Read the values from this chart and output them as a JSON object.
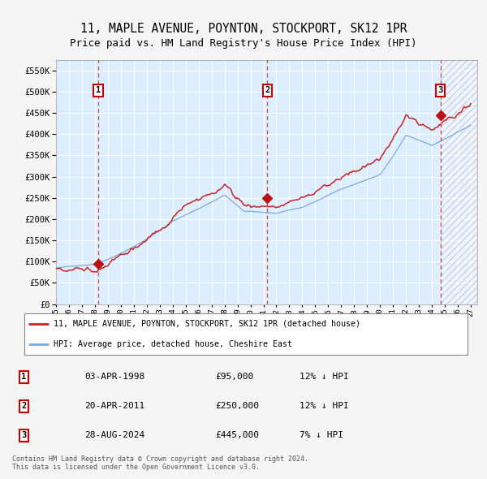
{
  "title": "11, MAPLE AVENUE, POYNTON, STOCKPORT, SK12 1PR",
  "subtitle": "Price paid vs. HM Land Registry's House Price Index (HPI)",
  "hpi_label": "HPI: Average price, detached house, Cheshire East",
  "property_label": "11, MAPLE AVENUE, POYNTON, STOCKPORT, SK12 1PR (detached house)",
  "sale_dates": [
    "03-APR-1998",
    "20-APR-2011",
    "28-AUG-2024"
  ],
  "sale_prices": [
    95000,
    250000,
    445000
  ],
  "sale_years": [
    1998.25,
    2011.3,
    2024.66
  ],
  "sale_hpi_pct": [
    "12%",
    "12%",
    "7%"
  ],
  "footer": [
    "Contains HM Land Registry data © Crown copyright and database right 2024.",
    "This data is licensed under the Open Government Licence v3.0."
  ],
  "ylim": [
    0,
    575000
  ],
  "xlim_start": 1995.0,
  "xlim_end": 2027.5,
  "plot_bg": "#ddeeff",
  "hpi_line_color": "#7aaadd",
  "price_line_color": "#cc2222",
  "marker_color": "#bb1111",
  "vline_color": "#dd4444",
  "grid_color": "#ffffff",
  "title_fontsize": 11,
  "subtitle_fontsize": 9.5,
  "yticks": [
    0,
    50000,
    100000,
    150000,
    200000,
    250000,
    300000,
    350000,
    400000,
    450000,
    500000,
    550000
  ]
}
